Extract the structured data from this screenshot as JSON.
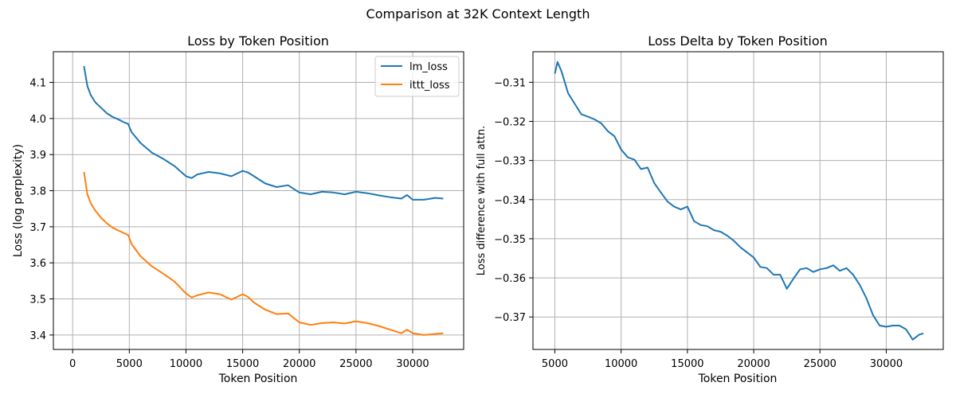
{
  "suptitle": "Comparison at 32K Context Length",
  "chart_data": [
    {
      "type": "line",
      "title": "Loss by Token Position",
      "xlabel": "Token Position",
      "ylabel": "Loss (log perplexity)",
      "xlim": [
        -1700,
        34500
      ],
      "ylim": [
        3.36,
        4.185
      ],
      "xticks": [
        0,
        5000,
        10000,
        15000,
        20000,
        25000,
        30000
      ],
      "yticks": [
        3.4,
        3.5,
        3.6,
        3.7,
        3.8,
        3.9,
        4.0,
        4.1
      ],
      "ytick_decimals": 1,
      "grid": true,
      "legend": "top-right",
      "series": [
        {
          "name": "lm_loss",
          "color": "#1f77b4",
          "x": [
            1000,
            1300,
            1600,
            2000,
            2500,
            3000,
            3500,
            4000,
            4500,
            4900,
            5200,
            6000,
            7000,
            8000,
            9000,
            10000,
            10500,
            11000,
            12000,
            13000,
            14000,
            15000,
            15500,
            16000,
            17000,
            18000,
            19000,
            20000,
            21000,
            22000,
            23000,
            24000,
            25000,
            26000,
            27000,
            28000,
            29000,
            29500,
            30000,
            31000,
            32000,
            32700
          ],
          "y": [
            4.145,
            4.09,
            4.065,
            4.045,
            4.03,
            4.015,
            4.005,
            3.998,
            3.99,
            3.985,
            3.962,
            3.932,
            3.905,
            3.888,
            3.868,
            3.84,
            3.835,
            3.845,
            3.852,
            3.848,
            3.84,
            3.855,
            3.85,
            3.84,
            3.82,
            3.81,
            3.815,
            3.795,
            3.79,
            3.797,
            3.795,
            3.79,
            3.797,
            3.793,
            3.787,
            3.782,
            3.778,
            3.788,
            3.775,
            3.775,
            3.78,
            3.778
          ]
        },
        {
          "name": "ittt_loss",
          "color": "#ff7f0e",
          "x": [
            1000,
            1300,
            1600,
            2000,
            2500,
            3000,
            3500,
            4000,
            4500,
            4900,
            5200,
            6000,
            7000,
            8000,
            9000,
            10000,
            10500,
            11000,
            12000,
            13000,
            14000,
            15000,
            15500,
            16000,
            17000,
            18000,
            19000,
            20000,
            21000,
            22000,
            23000,
            24000,
            25000,
            26000,
            27000,
            28000,
            29000,
            29500,
            30000,
            31000,
            32000,
            32700
          ],
          "y": [
            3.852,
            3.79,
            3.765,
            3.745,
            3.725,
            3.71,
            3.698,
            3.69,
            3.683,
            3.677,
            3.652,
            3.618,
            3.59,
            3.57,
            3.548,
            3.515,
            3.504,
            3.51,
            3.518,
            3.513,
            3.498,
            3.513,
            3.505,
            3.49,
            3.47,
            3.458,
            3.46,
            3.435,
            3.428,
            3.433,
            3.435,
            3.432,
            3.438,
            3.433,
            3.425,
            3.415,
            3.405,
            3.415,
            3.405,
            3.4,
            3.403,
            3.405
          ]
        }
      ]
    },
    {
      "type": "line",
      "title": "Loss Delta by Token Position",
      "xlabel": "Token Position",
      "ylabel": "Loss difference with full attn.",
      "xlim": [
        3350,
        34300
      ],
      "ylim": [
        -0.3783,
        -0.3022
      ],
      "xticks": [
        5000,
        10000,
        15000,
        20000,
        25000,
        30000
      ],
      "yticks": [
        -0.31,
        -0.32,
        -0.33,
        -0.34,
        -0.35,
        -0.36,
        -0.37
      ],
      "ytick_decimals": 2,
      "grid": true,
      "series": [
        {
          "color": "#1f77b4",
          "x": [
            5000,
            5200,
            5500,
            6000,
            6500,
            7000,
            7500,
            8000,
            8500,
            9000,
            9500,
            10000,
            10500,
            11000,
            11500,
            12000,
            12500,
            13000,
            13500,
            14000,
            14500,
            15000,
            15500,
            16000,
            16500,
            17000,
            17500,
            18000,
            18500,
            19000,
            19500,
            20000,
            20500,
            21000,
            21500,
            22000,
            22500,
            23000,
            23500,
            24000,
            24500,
            25000,
            25500,
            26000,
            26500,
            27000,
            27500,
            28000,
            28500,
            29000,
            29500,
            30000,
            30500,
            31000,
            31500,
            32000,
            32500,
            32800
          ],
          "y": [
            -0.3078,
            -0.3048,
            -0.3072,
            -0.3128,
            -0.3155,
            -0.3182,
            -0.3188,
            -0.3195,
            -0.3205,
            -0.3225,
            -0.3238,
            -0.3272,
            -0.3292,
            -0.3298,
            -0.3322,
            -0.3318,
            -0.3358,
            -0.3382,
            -0.3405,
            -0.3418,
            -0.3425,
            -0.3418,
            -0.3455,
            -0.3465,
            -0.3468,
            -0.3478,
            -0.3482,
            -0.3492,
            -0.3505,
            -0.3522,
            -0.3535,
            -0.3548,
            -0.3572,
            -0.3575,
            -0.3592,
            -0.3592,
            -0.3628,
            -0.3602,
            -0.3578,
            -0.3575,
            -0.3585,
            -0.3578,
            -0.3575,
            -0.3568,
            -0.3582,
            -0.3575,
            -0.3592,
            -0.3618,
            -0.3652,
            -0.3695,
            -0.3722,
            -0.3725,
            -0.3722,
            -0.3722,
            -0.3732,
            -0.3758,
            -0.3745,
            -0.3742
          ]
        }
      ]
    }
  ]
}
